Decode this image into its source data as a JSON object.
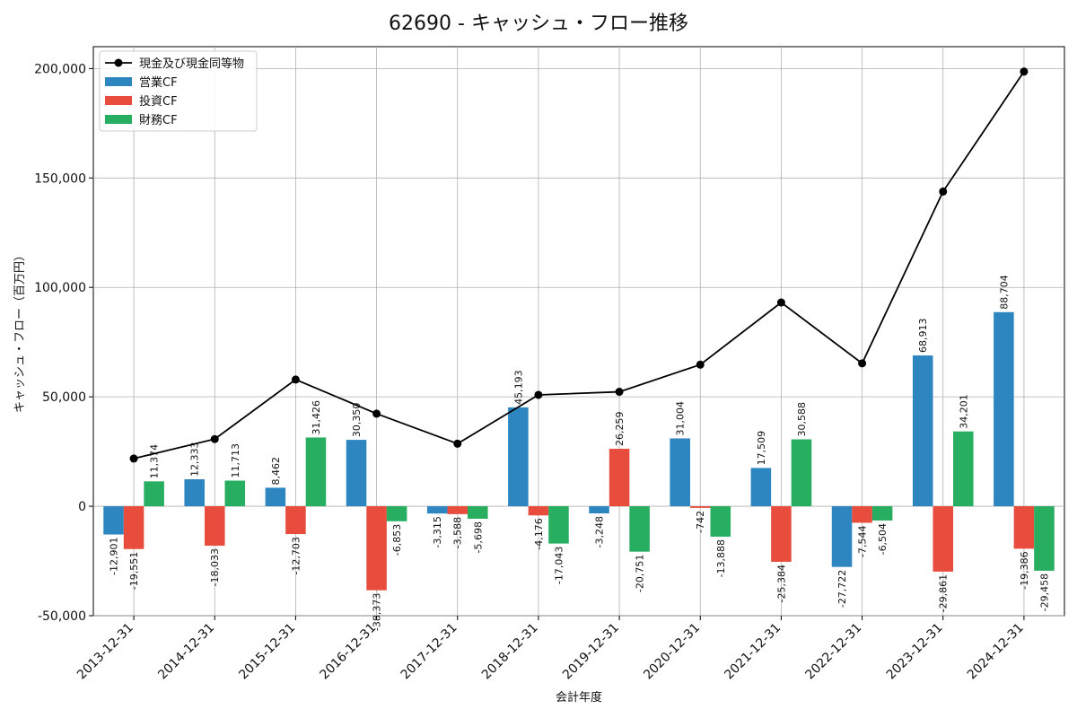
{
  "chart_data": {
    "type": "bar",
    "title": "62690 - キャッシュ・フロー推移",
    "xlabel": "会計年度",
    "ylabel": "キャッシュ・フロー（百万円）",
    "ylim": [
      -50000,
      210000
    ],
    "yticks": [
      -50000,
      0,
      50000,
      100000,
      150000,
      200000
    ],
    "ytick_labels": [
      "-50,000",
      "0",
      "50,000",
      "100,000",
      "150,000",
      "200,000"
    ],
    "grid": true,
    "legend_position": "top-left",
    "categories": [
      "2013-12-31",
      "2014-12-31",
      "2015-12-31",
      "2016-12-31",
      "2017-12-31",
      "2018-12-31",
      "2019-12-31",
      "2020-12-31",
      "2021-12-31",
      "2022-12-31",
      "2023-12-31",
      "2024-12-31"
    ],
    "line_series": {
      "name": "現金及び現金同等物",
      "color": "#000000",
      "values": [
        21800,
        30700,
        57900,
        42300,
        28600,
        50900,
        52300,
        64700,
        93100,
        65300,
        143800,
        198600
      ]
    },
    "series": [
      {
        "name": "営業CF",
        "color": "#2e86c1",
        "values": [
          -12901,
          12333,
          8462,
          30350,
          -3315,
          45193,
          -3248,
          31004,
          17509,
          -27722,
          68913,
          88704
        ],
        "labels": [
          "-12,901",
          "12,333",
          "8,462",
          "30,350",
          "-3,315",
          "45,193",
          "-3,248",
          "31,004",
          "17,509",
          "-27,722",
          "68,913",
          "88,704"
        ]
      },
      {
        "name": "投資CF",
        "color": "#e74c3c",
        "values": [
          -19551,
          -18033,
          -12703,
          -38373,
          -3588,
          -4176,
          26259,
          -742,
          -25384,
          -7544,
          -29861,
          -19386
        ],
        "labels": [
          "-19,551",
          "-18,033",
          "-12,703",
          "-38,373",
          "-3,588",
          "-4,176",
          "26,259",
          "-742",
          "-25,384",
          "-7,544",
          "-29,861",
          "-19,386"
        ]
      },
      {
        "name": "財務CF",
        "color": "#27ae60",
        "values": [
          11374,
          11713,
          31426,
          -6853,
          -5698,
          -17043,
          -20751,
          -13888,
          30588,
          -6504,
          34201,
          -29458
        ],
        "labels": [
          "11,374",
          "11,713",
          "31,426",
          "-6,853",
          "-5,698",
          "-17,043",
          "-20,751",
          "-13,888",
          "30,588",
          "-6,504",
          "34,201",
          "-29,458"
        ]
      }
    ]
  }
}
